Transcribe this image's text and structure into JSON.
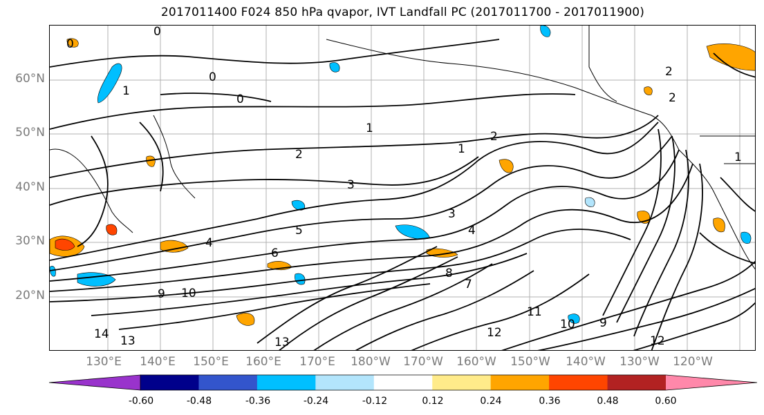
{
  "title": "2017011400 F024 850 hPa qvapor, IVT Landfall PC (2017011700 - 2017011900)",
  "lat_labels": [
    "60°N",
    "50°N",
    "40°N",
    "30°N",
    "20°N"
  ],
  "lon_labels": [
    "130°E",
    "140°E",
    "150°E",
    "160°E",
    "170°E",
    "180°W",
    "170°W",
    "160°W",
    "150°W",
    "140°W",
    "130°W",
    "120°W"
  ],
  "colorbar": {
    "tick_labels": [
      "-0.60",
      "-0.48",
      "-0.36",
      "-0.24",
      "-0.12",
      "0.12",
      "0.24",
      "0.36",
      "0.48",
      "0.60"
    ],
    "colors": [
      "#9933cc",
      "#00008b",
      "#3355cc",
      "#00bfff",
      "#b3e5fc",
      "#ffffff",
      "#ffeb8a",
      "#ffa500",
      "#ff4500",
      "#b22222",
      "#ff88aa"
    ],
    "extend": "both"
  },
  "contour_labels": [
    "0",
    "0",
    "0",
    "0",
    "1",
    "1",
    "1",
    "2",
    "2",
    "2",
    "2",
    "1",
    "3",
    "3",
    "4",
    "4",
    "5",
    "6",
    "7",
    "8",
    "9",
    "9",
    "10",
    "10",
    "12",
    "12",
    "13",
    "13",
    "14",
    "11"
  ],
  "map": {
    "lat_range": [
      10,
      70
    ],
    "lon_range": [
      120,
      255
    ],
    "fill_colors": {
      "positive_weak": "#ffeb8a",
      "positive": "#ffa500",
      "positive_strong": "#ff4500",
      "negative": "#00bfff",
      "negative_weak": "#b3e5fc"
    }
  }
}
